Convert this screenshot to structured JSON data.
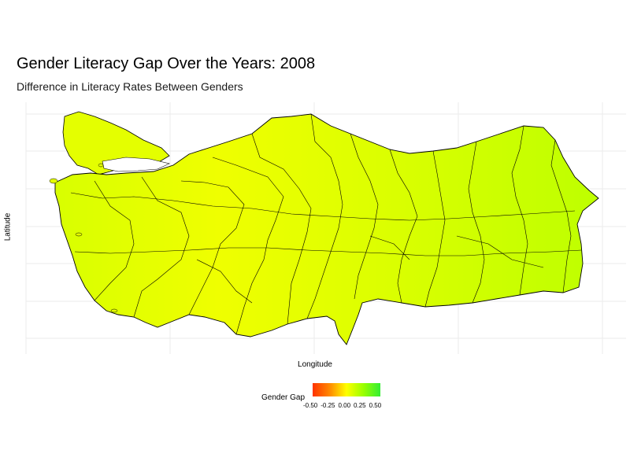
{
  "title": "Gender Literacy Gap Over the Years: 2008",
  "subtitle": "Difference in Literacy Rates Between Genders",
  "xlabel": "Longitude",
  "ylabel": "Latitude",
  "legend": {
    "title": "Gender Gap",
    "ticks": [
      "-0.50",
      "-0.25",
      "0.00",
      "0.25",
      "0.50"
    ],
    "colors": {
      "low": "#ff3300",
      "mid_low": "#ff8800",
      "mid": "#ffff00",
      "mid_high": "#99ff00",
      "high": "#33ee33"
    }
  },
  "map_colors": {
    "west": "#d8ff00",
    "central": "#efff00",
    "east": "#c4ff00",
    "border": "#000000",
    "grid": "#ebebeb"
  }
}
